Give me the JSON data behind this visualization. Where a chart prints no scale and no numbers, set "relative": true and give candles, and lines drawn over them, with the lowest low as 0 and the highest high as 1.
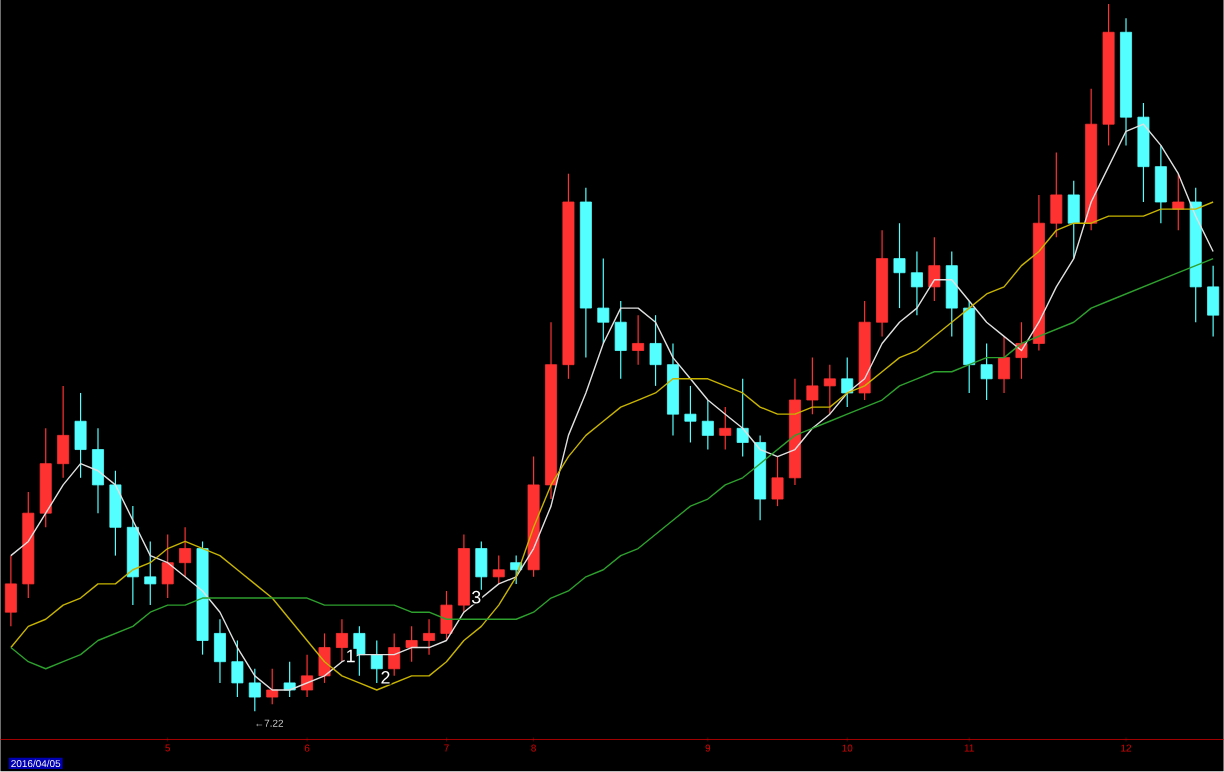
{
  "chart_data": {
    "type": "candlestick",
    "relative": true,
    "tick_labels": "x",
    "categories": [
      null,
      null,
      null,
      null,
      null,
      null,
      null,
      null,
      null,
      "5",
      null,
      null,
      null,
      null,
      null,
      null,
      null,
      "6",
      null,
      null,
      null,
      null,
      null,
      null,
      null,
      "7",
      null,
      null,
      null,
      null,
      "8",
      null,
      null,
      null,
      null,
      null,
      null,
      null,
      null,
      null,
      "9",
      null,
      null,
      null,
      null,
      null,
      null,
      null,
      "10",
      null,
      null,
      null,
      null,
      null,
      null,
      "11",
      null,
      null,
      null,
      null,
      null,
      null,
      null,
      null,
      "12",
      null,
      null,
      null,
      null,
      null
    ],
    "ohlc": [
      [
        0.14,
        0.22,
        0.12,
        0.18
      ],
      [
        0.18,
        0.31,
        0.16,
        0.28
      ],
      [
        0.28,
        0.4,
        0.26,
        0.35
      ],
      [
        0.35,
        0.46,
        0.33,
        0.39
      ],
      [
        0.41,
        0.45,
        0.33,
        0.37
      ],
      [
        0.37,
        0.4,
        0.28,
        0.32
      ],
      [
        0.32,
        0.34,
        0.22,
        0.26
      ],
      [
        0.26,
        0.29,
        0.15,
        0.19
      ],
      [
        0.19,
        0.24,
        0.15,
        0.18
      ],
      [
        0.18,
        0.25,
        0.16,
        0.21
      ],
      [
        0.21,
        0.26,
        0.19,
        0.23
      ],
      [
        0.23,
        0.24,
        0.08,
        0.1
      ],
      [
        0.11,
        0.13,
        0.04,
        0.07
      ],
      [
        0.07,
        0.1,
        0.02,
        0.04
      ],
      [
        0.04,
        0.06,
        0,
        0.02
      ],
      [
        0.02,
        0.06,
        0.01,
        0.03
      ],
      [
        0.04,
        0.07,
        0.02,
        0.03
      ],
      [
        0.03,
        0.08,
        0.02,
        0.05
      ],
      [
        0.05,
        0.11,
        0.04,
        0.09
      ],
      [
        0.09,
        0.13,
        0.07,
        0.11
      ],
      [
        0.11,
        0.12,
        0.05,
        0.08
      ],
      [
        0.08,
        0.1,
        0.04,
        0.06
      ],
      [
        0.06,
        0.11,
        0.05,
        0.09
      ],
      [
        0.09,
        0.12,
        0.07,
        0.1
      ],
      [
        0.1,
        0.13,
        0.08,
        0.11
      ],
      [
        0.11,
        0.17,
        0.1,
        0.15
      ],
      [
        0.15,
        0.25,
        0.14,
        0.23
      ],
      [
        0.23,
        0.24,
        0.17,
        0.19
      ],
      [
        0.19,
        0.22,
        0.18,
        0.2
      ],
      [
        0.21,
        0.22,
        0.18,
        0.2
      ],
      [
        0.2,
        0.36,
        0.19,
        0.32
      ],
      [
        0.32,
        0.55,
        0.3,
        0.49
      ],
      [
        0.49,
        0.76,
        0.47,
        0.72
      ],
      [
        0.72,
        0.74,
        0.5,
        0.57
      ],
      [
        0.57,
        0.64,
        0.52,
        0.55
      ],
      [
        0.55,
        0.58,
        0.47,
        0.51
      ],
      [
        0.51,
        0.56,
        0.49,
        0.52
      ],
      [
        0.52,
        0.56,
        0.46,
        0.49
      ],
      [
        0.49,
        0.52,
        0.39,
        0.42
      ],
      [
        0.42,
        0.46,
        0.38,
        0.41
      ],
      [
        0.41,
        0.44,
        0.37,
        0.39
      ],
      [
        0.39,
        0.43,
        0.37,
        0.4
      ],
      [
        0.4,
        0.47,
        0.36,
        0.38
      ],
      [
        0.38,
        0.39,
        0.27,
        0.3
      ],
      [
        0.3,
        0.36,
        0.29,
        0.33
      ],
      [
        0.33,
        0.47,
        0.32,
        0.44
      ],
      [
        0.44,
        0.5,
        0.42,
        0.46
      ],
      [
        0.46,
        0.49,
        0.42,
        0.47
      ],
      [
        0.47,
        0.5,
        0.43,
        0.45
      ],
      [
        0.45,
        0.58,
        0.44,
        0.55
      ],
      [
        0.55,
        0.68,
        0.53,
        0.64
      ],
      [
        0.64,
        0.69,
        0.57,
        0.62
      ],
      [
        0.62,
        0.65,
        0.56,
        0.6
      ],
      [
        0.6,
        0.67,
        0.58,
        0.63
      ],
      [
        0.63,
        0.65,
        0.53,
        0.57
      ],
      [
        0.57,
        0.58,
        0.45,
        0.49
      ],
      [
        0.49,
        0.52,
        0.44,
        0.47
      ],
      [
        0.47,
        0.53,
        0.45,
        0.5
      ],
      [
        0.5,
        0.55,
        0.47,
        0.52
      ],
      [
        0.52,
        0.73,
        0.51,
        0.69
      ],
      [
        0.69,
        0.79,
        0.67,
        0.73
      ],
      [
        0.73,
        0.75,
        0.64,
        0.69
      ],
      [
        0.69,
        0.88,
        0.68,
        0.83
      ],
      [
        0.83,
        1,
        0.8,
        0.96
      ],
      [
        0.96,
        0.98,
        0.8,
        0.84
      ],
      [
        0.84,
        0.86,
        0.72,
        0.77
      ],
      [
        0.77,
        0.8,
        0.69,
        0.72
      ],
      [
        0.71,
        0.76,
        0.68,
        0.72
      ],
      [
        0.72,
        0.74,
        0.55,
        0.6
      ],
      [
        0.6,
        0.63,
        0.53,
        0.56
      ]
    ],
    "colors": [
      "#ff3232",
      "#ff3232",
      "#ff3232",
      "#ff3232",
      "#54ffff",
      "#54ffff",
      "#54ffff",
      "#54ffff",
      "#54ffff",
      "#ff3232",
      "#ff3232",
      "#54ffff",
      "#54ffff",
      "#54ffff",
      "#54ffff",
      "#ff3232",
      "#54ffff",
      "#ff3232",
      "#ff3232",
      "#ff3232",
      "#54ffff",
      "#54ffff",
      "#ff3232",
      "#ff3232",
      "#ff3232",
      "#ff3232",
      "#ff3232",
      "#54ffff",
      "#ff3232",
      "#54ffff",
      "#ff3232",
      "#ff3232",
      "#ff3232",
      "#54ffff",
      "#54ffff",
      "#54ffff",
      "#ff3232",
      "#54ffff",
      "#54ffff",
      "#54ffff",
      "#54ffff",
      "#ff3232",
      "#54ffff",
      "#54ffff",
      "#ff3232",
      "#ff3232",
      "#ff3232",
      "#ff3232",
      "#54ffff",
      "#ff3232",
      "#ff3232",
      "#54ffff",
      "#54ffff",
      "#ff3232",
      "#54ffff",
      "#54ffff",
      "#54ffff",
      "#ff3232",
      "#ff3232",
      "#ff3232",
      "#ff3232",
      "#54ffff",
      "#ff3232",
      "#ff3232",
      "#54ffff",
      "#54ffff",
      "#54ffff",
      "#ff3232",
      "#54ffff",
      "#54ffff"
    ],
    "series": [
      {
        "type": "line",
        "color": "#e0e0e0",
        "values": [
          0.22,
          0.24,
          0.28,
          0.32,
          0.35,
          0.34,
          0.32,
          0.27,
          0.22,
          0.21,
          0.19,
          0.17,
          0.14,
          0.09,
          0.05,
          0.03,
          0.03,
          0.04,
          0.05,
          0.07,
          0.08,
          0.08,
          0.08,
          0.09,
          0.09,
          0.1,
          0.14,
          0.16,
          0.18,
          0.19,
          0.23,
          0.29,
          0.39,
          0.45,
          0.52,
          0.57,
          0.57,
          0.55,
          0.5,
          0.47,
          0.44,
          0.42,
          0.4,
          0.37,
          0.36,
          0.37,
          0.4,
          0.42,
          0.45,
          0.47,
          0.52,
          0.55,
          0.57,
          0.61,
          0.61,
          0.58,
          0.55,
          0.53,
          0.51,
          0.55,
          0.6,
          0.64,
          0.72,
          0.77,
          0.82,
          0.83,
          0.8,
          0.76,
          0.7,
          0.65
        ]
      },
      {
        "type": "line",
        "color": "#c8b400",
        "values": [
          0.09,
          0.12,
          0.13,
          0.15,
          0.16,
          0.18,
          0.18,
          0.2,
          0.21,
          0.23,
          0.24,
          0.23,
          0.22,
          0.2,
          0.18,
          0.16,
          0.13,
          0.1,
          0.07,
          0.05,
          0.04,
          0.03,
          0.04,
          0.05,
          0.05,
          0.07,
          0.1,
          0.12,
          0.15,
          0.19,
          0.26,
          0.32,
          0.36,
          0.39,
          0.41,
          0.43,
          0.44,
          0.45,
          0.47,
          0.47,
          0.47,
          0.46,
          0.45,
          0.43,
          0.42,
          0.42,
          0.43,
          0.43,
          0.45,
          0.46,
          0.48,
          0.5,
          0.51,
          0.53,
          0.55,
          0.57,
          0.59,
          0.6,
          0.63,
          0.65,
          0.68,
          0.69,
          0.69,
          0.7,
          0.7,
          0.7,
          0.71,
          0.71,
          0.71,
          0.72
        ]
      },
      {
        "type": "line",
        "color": "#2ea02e",
        "values": [
          0.09,
          0.07,
          0.06,
          0.07,
          0.08,
          0.1,
          0.11,
          0.12,
          0.14,
          0.15,
          0.15,
          0.16,
          0.16,
          0.16,
          0.16,
          0.16,
          0.16,
          0.16,
          0.15,
          0.15,
          0.15,
          0.15,
          0.15,
          0.14,
          0.14,
          0.13,
          0.13,
          0.13,
          0.13,
          0.13,
          0.14,
          0.16,
          0.17,
          0.19,
          0.2,
          0.22,
          0.23,
          0.25,
          0.27,
          0.29,
          0.3,
          0.32,
          0.33,
          0.35,
          0.37,
          0.39,
          0.4,
          0.41,
          0.42,
          0.43,
          0.44,
          0.46,
          0.47,
          0.48,
          0.48,
          0.49,
          0.5,
          0.5,
          0.52,
          0.53,
          0.54,
          0.55,
          0.57,
          0.58,
          0.59,
          0.6,
          0.61,
          0.62,
          0.63,
          0.64
        ]
      }
    ],
    "annotations": [
      "←7.22",
      "1",
      "2",
      "3",
      "2016/04/05"
    ]
  }
}
